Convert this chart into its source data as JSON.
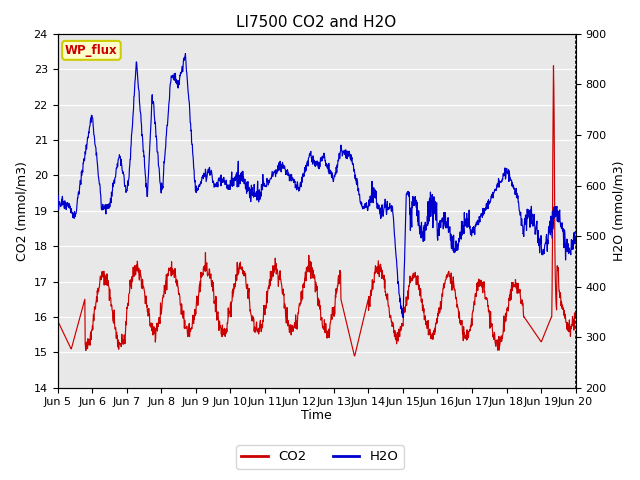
{
  "title": "LI7500 CO2 and H2O",
  "xlabel": "Time",
  "ylabel_left": "CO2 (mmol/m3)",
  "ylabel_right": "H2O (mmol/m3)",
  "ylim_left": [
    14.0,
    24.0
  ],
  "ylim_right": [
    200,
    900
  ],
  "yticks_left": [
    14.0,
    15.0,
    16.0,
    17.0,
    18.0,
    19.0,
    20.0,
    21.0,
    22.0,
    23.0,
    24.0
  ],
  "yticks_right": [
    200,
    300,
    400,
    500,
    600,
    700,
    800,
    900
  ],
  "xtick_labels": [
    "Jun 5",
    "Jun 6",
    "Jun 7",
    "Jun 8",
    "Jun 9",
    "Jun 10",
    "Jun 11",
    "Jun 12",
    "Jun 13",
    "Jun 14",
    "Jun 15",
    "Jun 16",
    "Jun 17",
    "Jun 18",
    "Jun 19",
    "Jun 20"
  ],
  "co2_color": "#cc0000",
  "h2o_color": "#0000cc",
  "bg_color": "#e8e8e8",
  "legend_label_co2": "CO2",
  "legend_label_h2o": "H2O",
  "annotation_text": "WP_flux",
  "annotation_bg": "#ffffcc",
  "annotation_border": "#cccc00"
}
